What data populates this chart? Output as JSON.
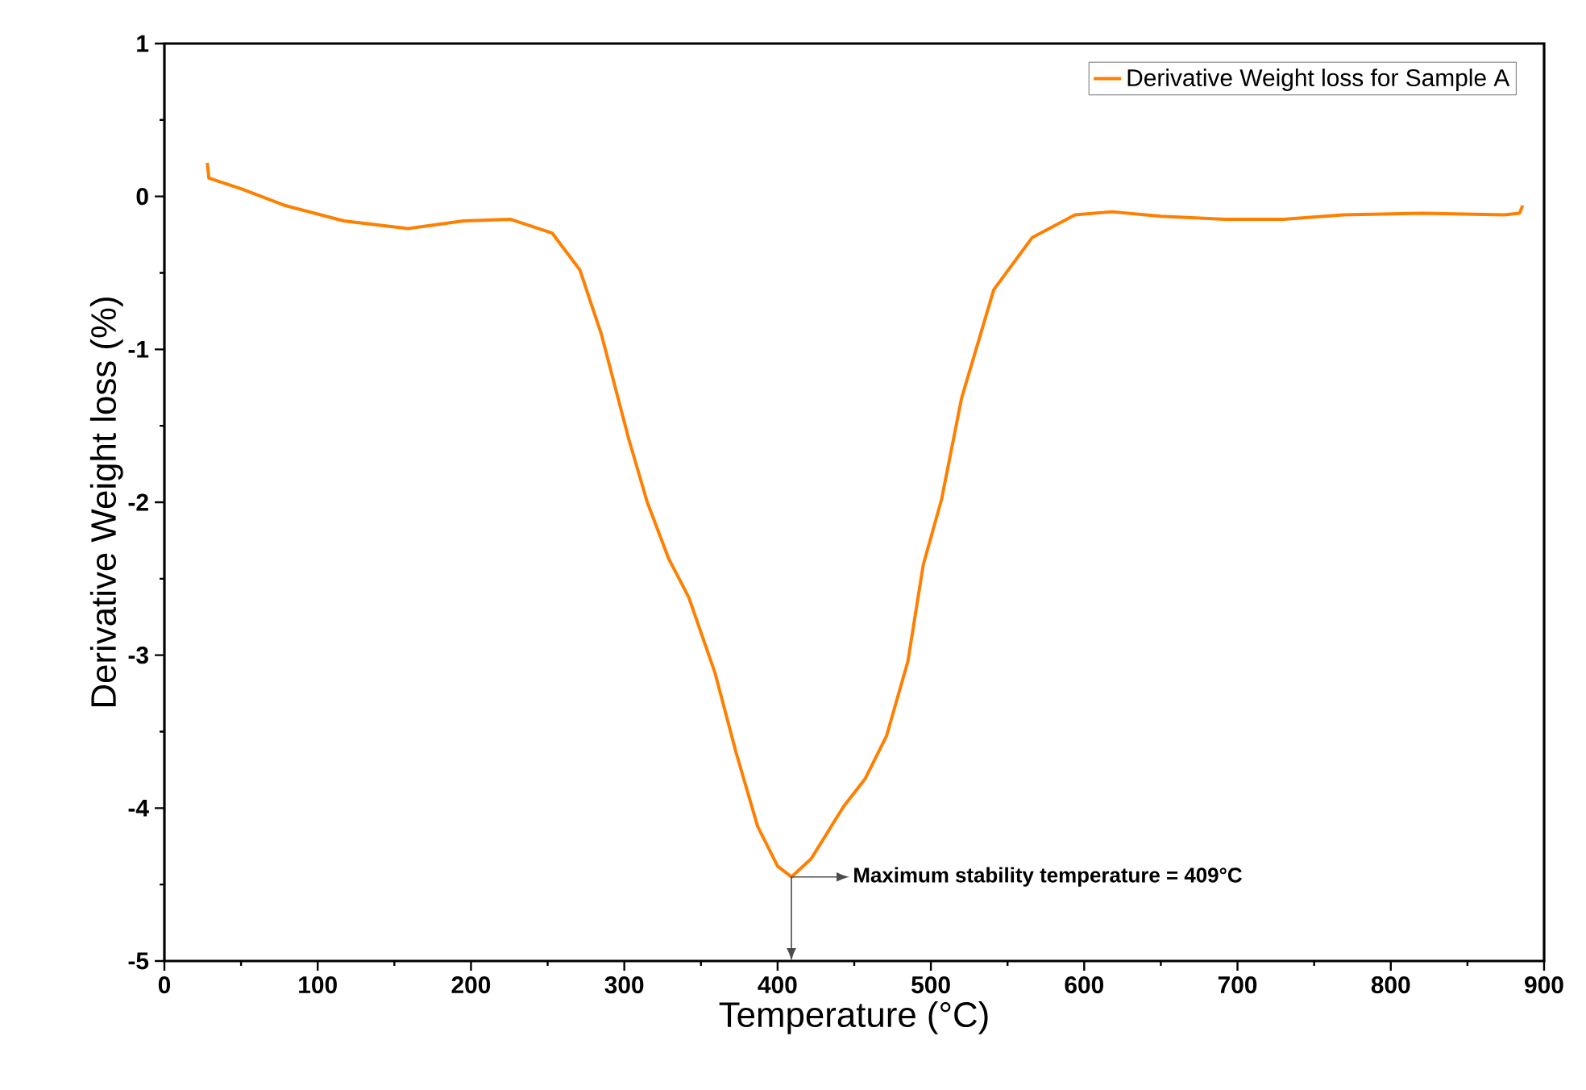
{
  "chart_data": {
    "type": "line",
    "xlabel": "Temperature (°C)",
    "ylabel": "Derivative Weight loss (%)",
    "series": [
      {
        "name": "Derivative Weight loss for Sample A",
        "color": "#ff7f00",
        "x": [
          28,
          29,
          50,
          79,
          117,
          159,
          195,
          226,
          253,
          271,
          285,
          303,
          315,
          329,
          342,
          359,
          373,
          387,
          400,
          409,
          422,
          443,
          457,
          471,
          485,
          495,
          507,
          520,
          541,
          566,
          594,
          618,
          650,
          692,
          730,
          769,
          820,
          874,
          884,
          886
        ],
        "values": [
          0.22,
          0.12,
          0.05,
          -0.06,
          -0.16,
          -0.21,
          -0.16,
          -0.15,
          -0.24,
          -0.48,
          -0.9,
          -1.59,
          -2.0,
          -2.37,
          -2.62,
          -3.11,
          -3.64,
          -4.12,
          -4.38,
          -4.45,
          -4.33,
          -3.99,
          -3.81,
          -3.53,
          -3.04,
          -2.41,
          -1.98,
          -1.32,
          -0.61,
          -0.27,
          -0.12,
          -0.1,
          -0.13,
          -0.15,
          -0.15,
          -0.12,
          -0.11,
          -0.12,
          -0.11,
          -0.06
        ]
      }
    ],
    "xlim": [
      0,
      900
    ],
    "ylim": [
      -5,
      1
    ],
    "xticks": [
      0,
      100,
      200,
      300,
      400,
      500,
      600,
      700,
      800,
      900
    ],
    "yticks": [
      -5,
      -4,
      -3,
      -2,
      -1,
      0,
      1
    ],
    "legend": "top right",
    "grid": false,
    "marker": "none",
    "line_style": "solid",
    "annotations": [
      "Maximum stability temperature = 409°C"
    ]
  }
}
